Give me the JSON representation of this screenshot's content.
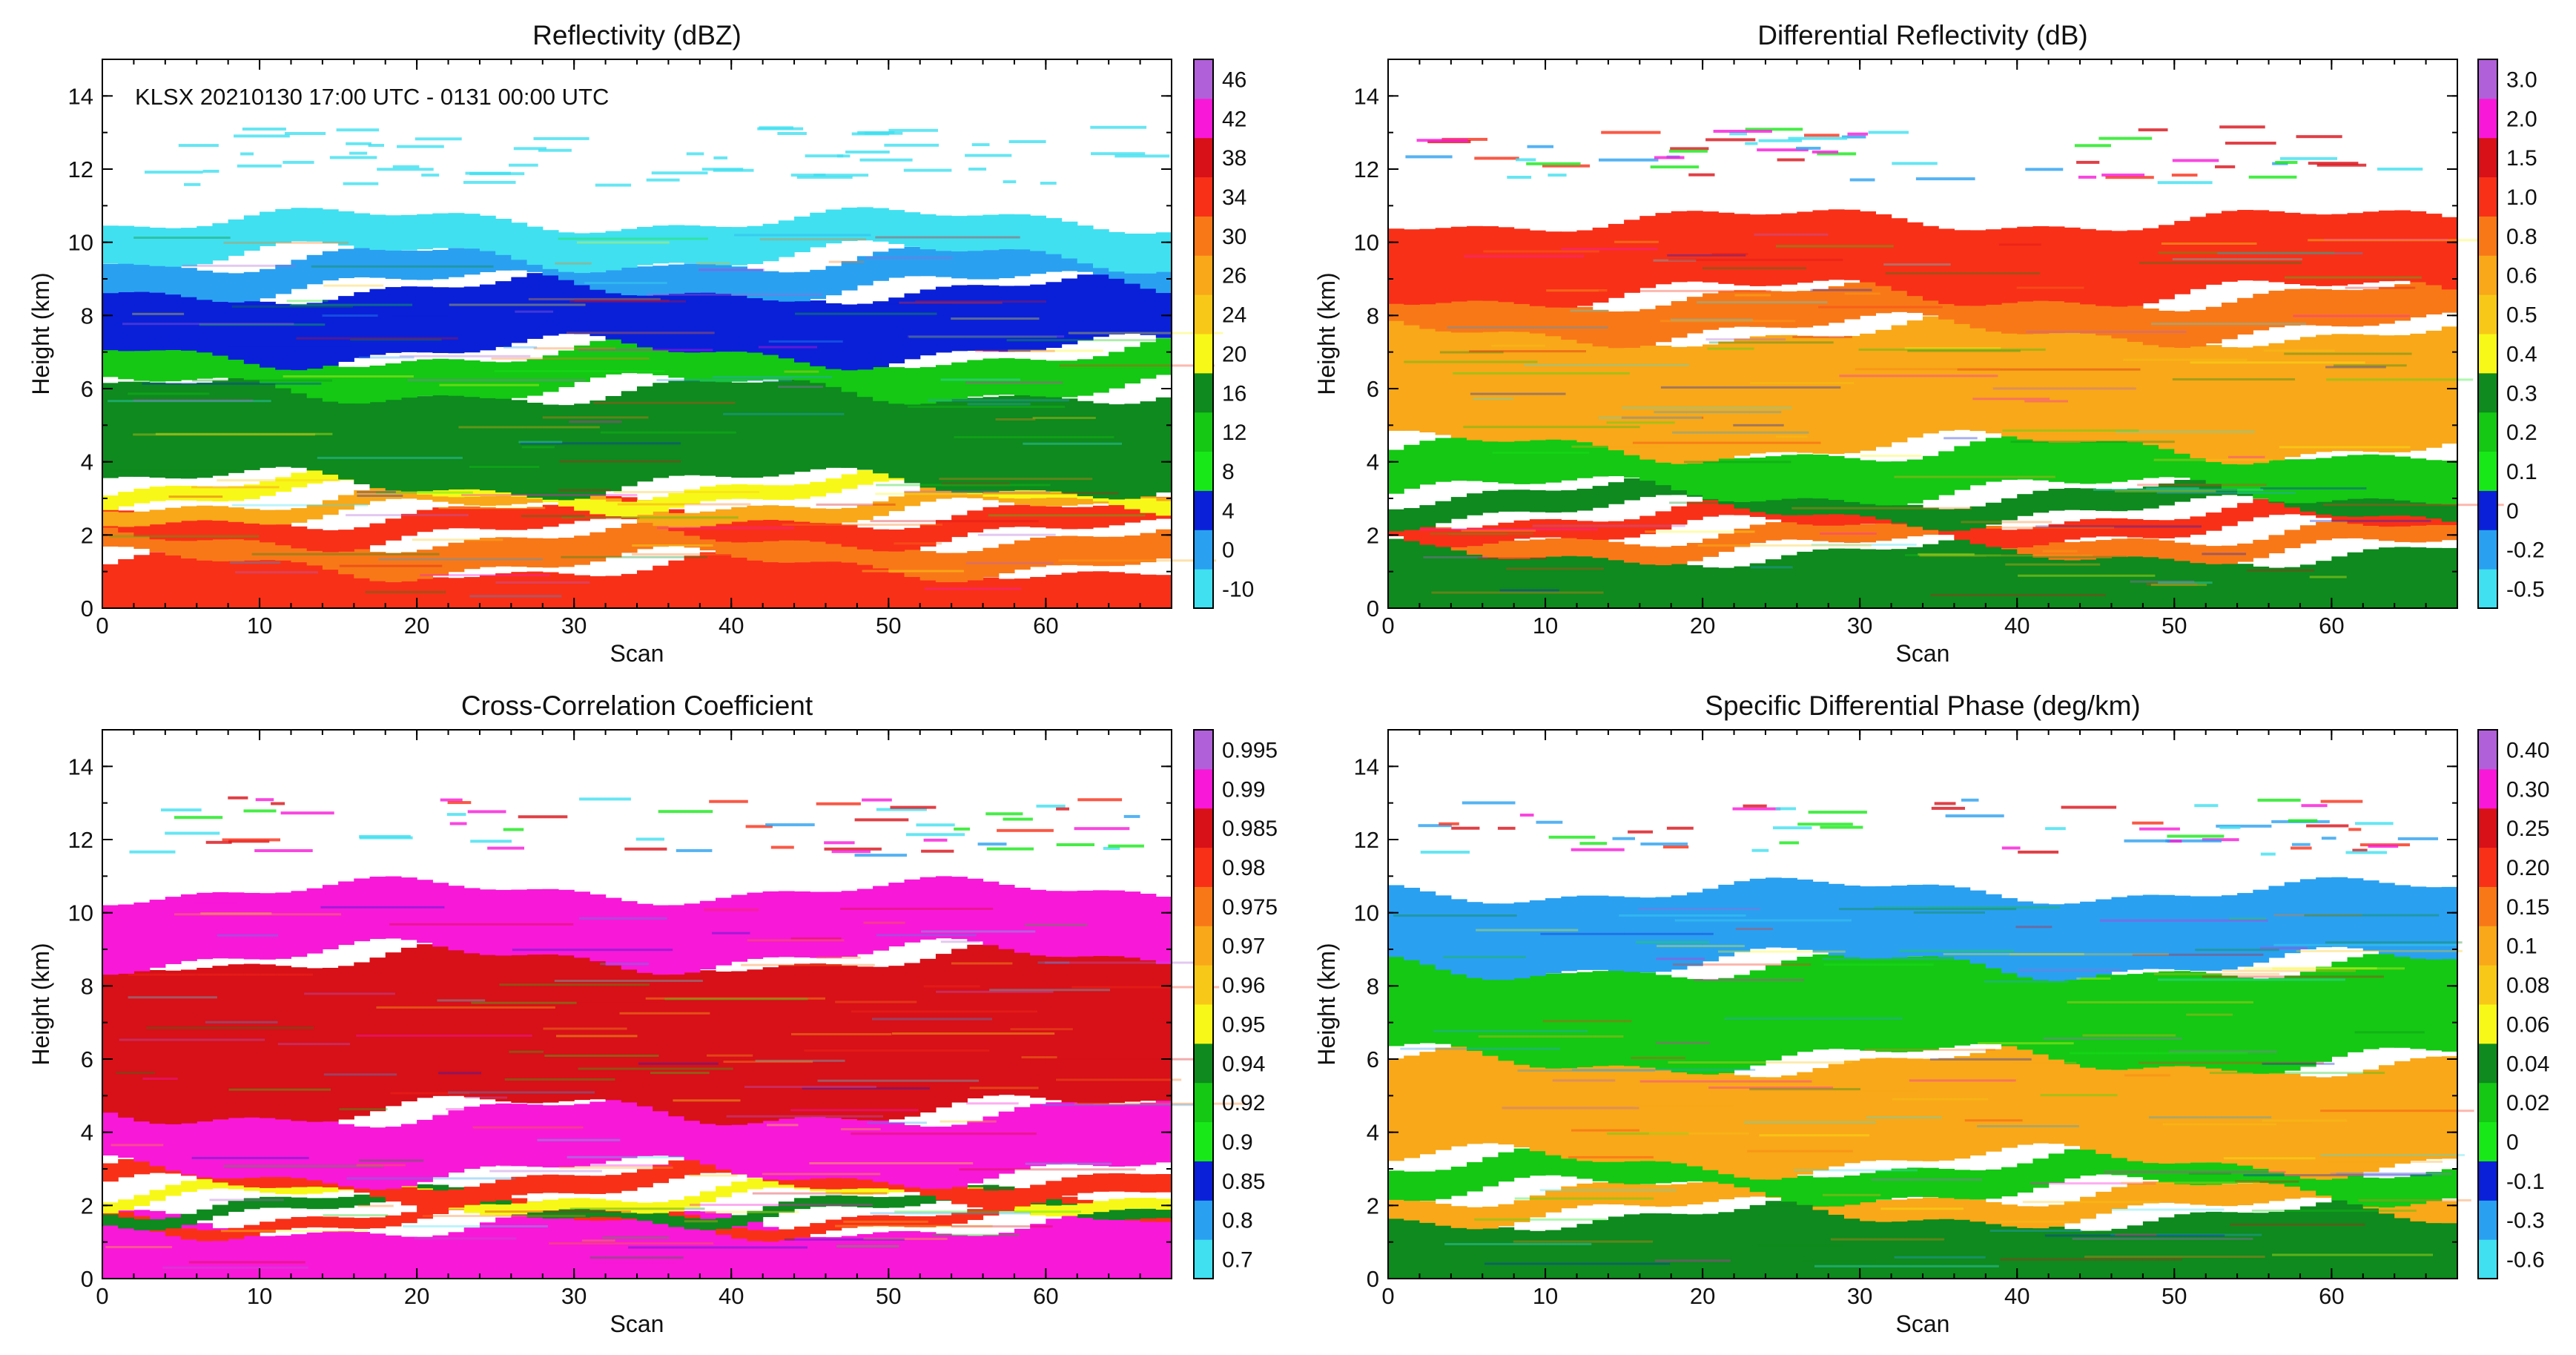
{
  "figure": {
    "annotation": "KLSX 20210130 17:00 UTC - 0131 00:00 UTC"
  },
  "palette": [
    "#40e0f0",
    "#2aa0f0",
    "#0a20d8",
    "#18e818",
    "#14c814",
    "#0e8a1e",
    "#f8f818",
    "#f8c818",
    "#f8a818",
    "#f87818",
    "#f83018",
    "#d81018",
    "#f818d8",
    "#b060d8"
  ],
  "chart_data": [
    {
      "id": "reflectivity",
      "type": "heatmap",
      "title": "Reflectivity (dBZ)",
      "xlabel": "Scan",
      "ylabel": "Height (km)",
      "xlim": [
        0,
        68
      ],
      "ylim": [
        0,
        15
      ],
      "xticks": [
        0,
        10,
        20,
        30,
        40,
        50,
        60
      ],
      "yticks": [
        0,
        2,
        4,
        6,
        8,
        10,
        12,
        14
      ],
      "colorbar": {
        "labels": [
          "-10",
          "0",
          "4",
          "8",
          "12",
          "16",
          "20",
          "24",
          "26",
          "30",
          "34",
          "38",
          "42",
          "46"
        ]
      },
      "layers": [
        {
          "from_km": 0.0,
          "to_km": 1.2,
          "level": 10
        },
        {
          "from_km": 1.2,
          "to_km": 2.0,
          "level": 9
        },
        {
          "from_km": 2.0,
          "to_km": 2.6,
          "level": 10
        },
        {
          "from_km": 2.6,
          "to_km": 3.0,
          "level": 8
        },
        {
          "from_km": 3.0,
          "to_km": 3.4,
          "level": 6
        },
        {
          "from_km": 3.4,
          "to_km": 6.0,
          "level": 5
        },
        {
          "from_km": 6.0,
          "to_km": 7.0,
          "level": 4
        },
        {
          "from_km": 7.0,
          "to_km": 8.8,
          "level": 2
        },
        {
          "from_km": 8.8,
          "to_km": 9.6,
          "level": 1
        },
        {
          "from_km": 9.6,
          "to_km": 10.6,
          "level": 0
        }
      ]
    },
    {
      "id": "differential-reflectivity",
      "type": "heatmap",
      "title": "Differential Reflectivity (dB)",
      "xlabel": "Scan",
      "ylabel": "Height (km)",
      "xlim": [
        0,
        68
      ],
      "ylim": [
        0,
        15
      ],
      "xticks": [
        0,
        10,
        20,
        30,
        40,
        50,
        60
      ],
      "yticks": [
        0,
        2,
        4,
        6,
        8,
        10,
        12,
        14
      ],
      "colorbar": {
        "labels": [
          "-0.5",
          "-0.2",
          "0",
          "0.1",
          "0.2",
          "0.3",
          "0.4",
          "0.5",
          "0.6",
          "0.8",
          "1.0",
          "1.5",
          "2.0",
          "3.0"
        ]
      },
      "layers": [
        {
          "from_km": 0.0,
          "to_km": 1.6,
          "level": 5
        },
        {
          "from_km": 1.6,
          "to_km": 2.1,
          "level": 9
        },
        {
          "from_km": 2.1,
          "to_km": 2.6,
          "level": 10
        },
        {
          "from_km": 2.6,
          "to_km": 3.2,
          "level": 5
        },
        {
          "from_km": 3.2,
          "to_km": 4.4,
          "level": 4
        },
        {
          "from_km": 4.4,
          "to_km": 7.6,
          "level": 8
        },
        {
          "from_km": 7.6,
          "to_km": 8.6,
          "level": 9
        },
        {
          "from_km": 8.6,
          "to_km": 10.6,
          "level": 10
        }
      ]
    },
    {
      "id": "cross-correlation-coefficient",
      "type": "heatmap",
      "title": "Cross-Correlation Coefficient",
      "xlabel": "Scan",
      "ylabel": "Height (km)",
      "xlim": [
        0,
        68
      ],
      "ylim": [
        0,
        15
      ],
      "xticks": [
        0,
        10,
        20,
        30,
        40,
        50,
        60
      ],
      "yticks": [
        0,
        2,
        4,
        6,
        8,
        10,
        12,
        14
      ],
      "colorbar": {
        "labels": [
          "0.7",
          "0.8",
          "0.85",
          "0.9",
          "0.92",
          "0.94",
          "0.95",
          "0.96",
          "0.97",
          "0.975",
          "0.98",
          "0.985",
          "0.99",
          "0.995"
        ]
      },
      "layers": [
        {
          "from_km": 0.0,
          "to_km": 1.5,
          "level": 12
        },
        {
          "from_km": 1.5,
          "to_km": 1.8,
          "level": 10
        },
        {
          "from_km": 1.8,
          "to_km": 2.1,
          "level": 5
        },
        {
          "from_km": 2.1,
          "to_km": 2.4,
          "level": 6
        },
        {
          "from_km": 2.4,
          "to_km": 2.9,
          "level": 10
        },
        {
          "from_km": 2.9,
          "to_km": 4.6,
          "level": 12
        },
        {
          "from_km": 4.6,
          "to_km": 8.8,
          "level": 11
        },
        {
          "from_km": 8.8,
          "to_km": 10.6,
          "level": 12
        }
      ]
    },
    {
      "id": "specific-differential-phase",
      "type": "heatmap",
      "title": "Specific Differential Phase (deg/km)",
      "xlabel": "Scan",
      "ylabel": "Height (km)",
      "xlim": [
        0,
        68
      ],
      "ylim": [
        0,
        15
      ],
      "xticks": [
        0,
        10,
        20,
        30,
        40,
        50,
        60
      ],
      "yticks": [
        0,
        2,
        4,
        6,
        8,
        10,
        12,
        14
      ],
      "colorbar": {
        "labels": [
          "-0.6",
          "-0.3",
          "-0.1",
          "0",
          "0.02",
          "0.04",
          "0.06",
          "0.08",
          "0.1",
          "0.15",
          "0.20",
          "0.25",
          "0.30",
          "0.40"
        ]
      },
      "layers": [
        {
          "from_km": 0.0,
          "to_km": 1.8,
          "level": 5
        },
        {
          "from_km": 1.8,
          "to_km": 2.4,
          "level": 8
        },
        {
          "from_km": 2.4,
          "to_km": 3.2,
          "level": 4
        },
        {
          "from_km": 3.2,
          "to_km": 6.0,
          "level": 8
        },
        {
          "from_km": 6.0,
          "to_km": 8.6,
          "level": 4
        },
        {
          "from_km": 8.6,
          "to_km": 10.6,
          "level": 1
        }
      ]
    }
  ]
}
